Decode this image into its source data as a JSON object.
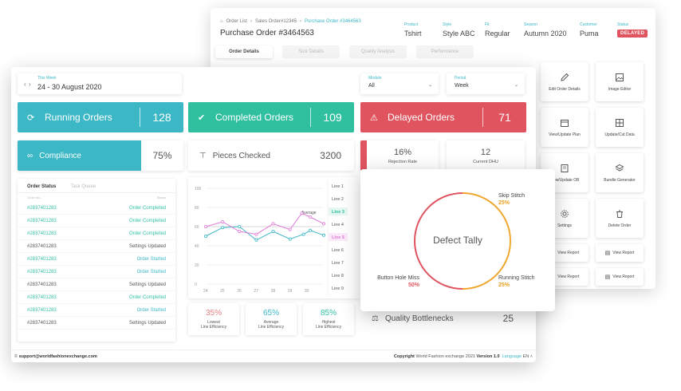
{
  "back": {
    "breadcrumb": [
      "Order List",
      "Sales Order#12345",
      "Purchase Order #3464563"
    ],
    "title": "Purchase Order #3464563",
    "meta": [
      {
        "key": "Product",
        "value": "Tshirt"
      },
      {
        "key": "Style",
        "value": "Style ABC"
      },
      {
        "key": "Fit",
        "value": "Regular"
      },
      {
        "key": "Season",
        "value": "Autumn 2020"
      },
      {
        "key": "Customer",
        "value": "Puma"
      }
    ],
    "status_key": "Status",
    "status_value": "DELAYED",
    "tabs": [
      "Order Details",
      "Size Details",
      "Quality Analysis",
      "Performance"
    ],
    "tiles": [
      "Edit Order Details",
      "Image Editor",
      "View/Update Plan",
      "Update/Cut Data",
      "View/Update OB",
      "Bundle Generator",
      "Settings",
      "Delete Order"
    ],
    "report_tiles": [
      "View Report",
      "View Report",
      "View Report",
      "View Report"
    ]
  },
  "front": {
    "week": {
      "key": "This Week",
      "value": "24 - 30 August 2020"
    },
    "module": {
      "key": "Module",
      "value": "All"
    },
    "period": {
      "key": "Period",
      "value": "Week"
    },
    "cards": [
      {
        "label": "Running Orders",
        "value": "128"
      },
      {
        "label": "Completed Orders",
        "value": "109"
      },
      {
        "label": "Delayed Orders",
        "value": "71"
      }
    ],
    "compliance": {
      "label": "Compliance",
      "value": "75%"
    },
    "pieces": {
      "label": "Pieces Checked",
      "value": "3200"
    },
    "rejection": {
      "label": "Rejection Rate",
      "value": "16%"
    },
    "dhu": {
      "label": "Current DHU",
      "value": "12"
    },
    "status_panel": {
      "tab_active": "Order Status",
      "tab_inactive": "Task Queue",
      "col_order": "Order No.",
      "col_status": "Status",
      "rows": [
        {
          "order": "#2837401283",
          "status": "Order Completed",
          "color": "#30c0a0"
        },
        {
          "order": "#2837401283",
          "status": "Order Completed",
          "color": "#30c0a0"
        },
        {
          "order": "#2837401283",
          "status": "Order Completed",
          "color": "#30c0a0"
        },
        {
          "order": "#2837401283",
          "status": "Settings Updated",
          "color": "#555555"
        },
        {
          "order": "#2837401283",
          "status": "Order Started",
          "color": "#3cb7c6"
        },
        {
          "order": "#2837401283",
          "status": "Order Started",
          "color": "#3cb7c6"
        },
        {
          "order": "#2837401283",
          "status": "Settings Updated",
          "color": "#555555"
        },
        {
          "order": "#2837401283",
          "status": "Order Completed",
          "color": "#30c0a0"
        },
        {
          "order": "#2837401283",
          "status": "Order Started",
          "color": "#3cb7c6"
        },
        {
          "order": "#2837401283",
          "status": "Settings Updated",
          "color": "#555555"
        }
      ]
    },
    "efficiency": [
      {
        "value": "35%",
        "label1": "Lowest",
        "label2": "Line Efficiency",
        "color": "#e88080"
      },
      {
        "value": "65%",
        "label1": "Average",
        "label2": "Line Efficiency",
        "color": "#3cb7c6"
      },
      {
        "value": "85%",
        "label1": "Highest",
        "label2": "Line Efficiency",
        "color": "#30c0a0"
      }
    ],
    "footer": {
      "email": "support@worldfashionexchange.com",
      "copyright_bold": "Copyright",
      "copyright_text": "World Fashion exchange 2021",
      "version": "Version 1.0",
      "lang_label": "Language",
      "lang_value": "EN"
    }
  },
  "chart_data": {
    "type": "line",
    "x": [
      24,
      25,
      26,
      27,
      28,
      29,
      30
    ],
    "ylim": [
      0,
      100
    ],
    "yticks": [
      0,
      20,
      40,
      60,
      80,
      100
    ],
    "average_label": "Average",
    "average_value": 60,
    "series": [
      {
        "name": "Line 3",
        "color": "#3cb7c6",
        "values": [
          [
            24,
            50
          ],
          [
            25,
            59
          ],
          [
            26,
            60
          ],
          [
            27,
            46
          ],
          [
            28,
            55
          ],
          [
            29,
            47
          ],
          [
            29.8,
            52
          ],
          [
            30.2,
            56
          ],
          [
            31,
            51
          ]
        ]
      },
      {
        "name": "Line 5",
        "color": "#e07ad8",
        "values": [
          [
            24,
            60
          ],
          [
            25,
            65
          ],
          [
            26,
            55
          ],
          [
            27,
            52
          ],
          [
            28,
            63
          ],
          [
            29,
            57
          ],
          [
            29.7,
            74
          ],
          [
            30.2,
            70
          ],
          [
            31,
            63
          ]
        ]
      }
    ],
    "lines": [
      "Line 1",
      "Line 2",
      "Line 3",
      "Line 4",
      "Line 5",
      "Line 6",
      "Line 7",
      "Line 8",
      "Line 9"
    ],
    "active_lines": {
      "Line 3": "#30c0a0",
      "Line 5": "#e07ad8"
    }
  },
  "defect": {
    "title": "Defect Tally",
    "items": [
      {
        "label": "Skip Stitch",
        "pct": "25%",
        "color": "#e8a020"
      },
      {
        "label": "Running Stitch",
        "pct": "25%",
        "color": "#e8a020"
      },
      {
        "label": "Button Hole Miss",
        "pct": "50%",
        "color": "#e0545f"
      }
    ],
    "colors": {
      "orange": "#f0a830",
      "red": "#e0545f"
    }
  },
  "quality": {
    "label": "Quality Bottlenecks",
    "value": "25"
  }
}
